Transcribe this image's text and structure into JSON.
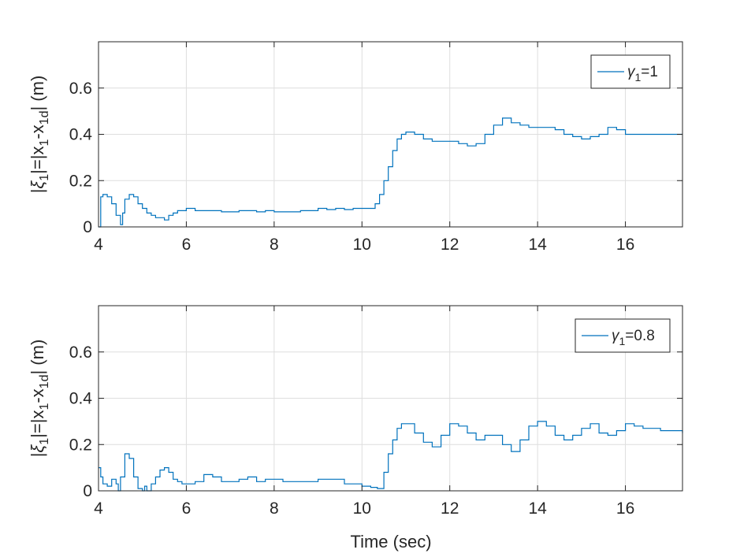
{
  "figure": {
    "xlabel": "Time (sec)"
  },
  "chart_data": [
    {
      "type": "line",
      "ylabel_parts": [
        "|",
        "ξ",
        "1",
        "|=|x",
        "1",
        "-x",
        "1d",
        "| (m)"
      ],
      "xlim": [
        4,
        17.3
      ],
      "ylim": [
        0,
        0.8
      ],
      "x_ticks": [
        4,
        6,
        8,
        10,
        12,
        14,
        16
      ],
      "y_ticks": [
        0,
        0.2,
        0.4,
        0.6
      ],
      "grid": true,
      "legend_position": "top-right",
      "legend": {
        "symbol": "γ",
        "subscript": "1",
        "value": "=1"
      },
      "series": [
        {
          "color": "#0072BD",
          "x": [
            4.0,
            4.05,
            4.1,
            4.2,
            4.3,
            4.4,
            4.5,
            4.55,
            4.6,
            4.7,
            4.8,
            4.9,
            5.0,
            5.1,
            5.2,
            5.3,
            5.4,
            5.5,
            5.6,
            5.7,
            5.8,
            5.9,
            6.0,
            6.2,
            6.4,
            6.6,
            6.8,
            7.0,
            7.2,
            7.4,
            7.6,
            7.8,
            8.0,
            8.2,
            8.4,
            8.6,
            8.8,
            9.0,
            9.2,
            9.4,
            9.6,
            9.8,
            10.0,
            10.15,
            10.3,
            10.4,
            10.5,
            10.6,
            10.7,
            10.8,
            10.9,
            11.0,
            11.2,
            11.4,
            11.6,
            11.8,
            12.0,
            12.2,
            12.4,
            12.6,
            12.8,
            13.0,
            13.2,
            13.4,
            13.6,
            13.8,
            14.0,
            14.2,
            14.4,
            14.6,
            14.8,
            15.0,
            15.2,
            15.4,
            15.6,
            15.8,
            16.0,
            16.2,
            16.4,
            16.6,
            16.8,
            17.0,
            17.3
          ],
          "y": [
            0.0,
            0.13,
            0.14,
            0.13,
            0.1,
            0.05,
            0.01,
            0.06,
            0.12,
            0.14,
            0.13,
            0.1,
            0.08,
            0.06,
            0.05,
            0.04,
            0.04,
            0.03,
            0.05,
            0.06,
            0.07,
            0.07,
            0.08,
            0.07,
            0.07,
            0.07,
            0.065,
            0.065,
            0.07,
            0.07,
            0.065,
            0.07,
            0.065,
            0.065,
            0.065,
            0.07,
            0.07,
            0.08,
            0.075,
            0.08,
            0.075,
            0.08,
            0.08,
            0.08,
            0.1,
            0.14,
            0.2,
            0.26,
            0.33,
            0.38,
            0.4,
            0.41,
            0.4,
            0.38,
            0.37,
            0.37,
            0.37,
            0.36,
            0.35,
            0.36,
            0.4,
            0.44,
            0.47,
            0.45,
            0.44,
            0.43,
            0.43,
            0.43,
            0.42,
            0.4,
            0.39,
            0.38,
            0.39,
            0.4,
            0.43,
            0.42,
            0.4,
            0.4,
            0.4,
            0.4,
            0.4,
            0.4,
            0.4
          ]
        }
      ]
    },
    {
      "type": "line",
      "ylabel_parts": [
        "|",
        "ξ",
        "1",
        "|=|x",
        "1",
        "-x",
        "1d",
        "| (m)"
      ],
      "xlim": [
        4,
        17.3
      ],
      "ylim": [
        0,
        0.8
      ],
      "x_ticks": [
        4,
        6,
        8,
        10,
        12,
        14,
        16
      ],
      "y_ticks": [
        0,
        0.2,
        0.4,
        0.6
      ],
      "grid": true,
      "legend_position": "top-right",
      "legend": {
        "symbol": "γ",
        "subscript": "1",
        "value": "=0.8"
      },
      "series": [
        {
          "color": "#0072BD",
          "x": [
            4.0,
            4.05,
            4.1,
            4.2,
            4.3,
            4.4,
            4.45,
            4.5,
            4.6,
            4.7,
            4.8,
            4.9,
            5.0,
            5.05,
            5.1,
            5.2,
            5.3,
            5.4,
            5.5,
            5.6,
            5.7,
            5.8,
            5.9,
            6.0,
            6.2,
            6.4,
            6.6,
            6.8,
            7.0,
            7.2,
            7.4,
            7.6,
            7.8,
            8.0,
            8.2,
            8.4,
            8.6,
            8.8,
            9.0,
            9.2,
            9.4,
            9.6,
            9.8,
            10.0,
            10.2,
            10.35,
            10.5,
            10.6,
            10.7,
            10.8,
            10.9,
            11.0,
            11.2,
            11.4,
            11.6,
            11.8,
            12.0,
            12.2,
            12.4,
            12.6,
            12.8,
            13.0,
            13.2,
            13.4,
            13.6,
            13.8,
            14.0,
            14.2,
            14.4,
            14.6,
            14.8,
            15.0,
            15.2,
            15.4,
            15.6,
            15.8,
            16.0,
            16.2,
            16.4,
            16.6,
            16.8,
            17.0,
            17.3
          ],
          "y": [
            0.1,
            0.06,
            0.03,
            0.02,
            0.05,
            0.03,
            0.0,
            0.06,
            0.16,
            0.14,
            0.06,
            0.01,
            0.0,
            0.02,
            0.0,
            0.03,
            0.06,
            0.09,
            0.1,
            0.08,
            0.05,
            0.04,
            0.03,
            0.03,
            0.04,
            0.07,
            0.06,
            0.04,
            0.04,
            0.05,
            0.06,
            0.04,
            0.05,
            0.05,
            0.04,
            0.04,
            0.04,
            0.04,
            0.05,
            0.05,
            0.05,
            0.03,
            0.03,
            0.02,
            0.015,
            0.01,
            0.08,
            0.16,
            0.22,
            0.27,
            0.29,
            0.29,
            0.25,
            0.21,
            0.19,
            0.24,
            0.29,
            0.28,
            0.25,
            0.22,
            0.24,
            0.24,
            0.2,
            0.17,
            0.22,
            0.28,
            0.3,
            0.28,
            0.24,
            0.22,
            0.24,
            0.27,
            0.29,
            0.25,
            0.24,
            0.26,
            0.29,
            0.28,
            0.27,
            0.27,
            0.26,
            0.26,
            0.25
          ]
        }
      ]
    }
  ]
}
